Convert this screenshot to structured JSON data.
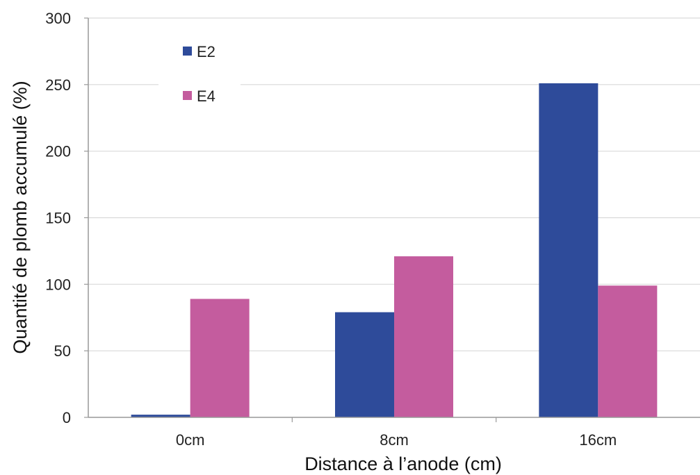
{
  "chart_data": {
    "type": "bar",
    "title": "",
    "xlabel": "Distance à l’anode (cm)",
    "ylabel": "Quantité de plomb accumulé (%)",
    "categories": [
      "0cm",
      "8cm",
      "16cm"
    ],
    "series": [
      {
        "name": "E2",
        "values": [
          2,
          79,
          251
        ],
        "color": "#2e4b9a"
      },
      {
        "name": "E4",
        "values": [
          89,
          121,
          99
        ],
        "color": "#c45c9e"
      }
    ],
    "ylim": [
      0,
      300
    ],
    "yticks": [
      0,
      50,
      100,
      150,
      200,
      250,
      300
    ],
    "grid": true,
    "legend_position": "top-left"
  }
}
